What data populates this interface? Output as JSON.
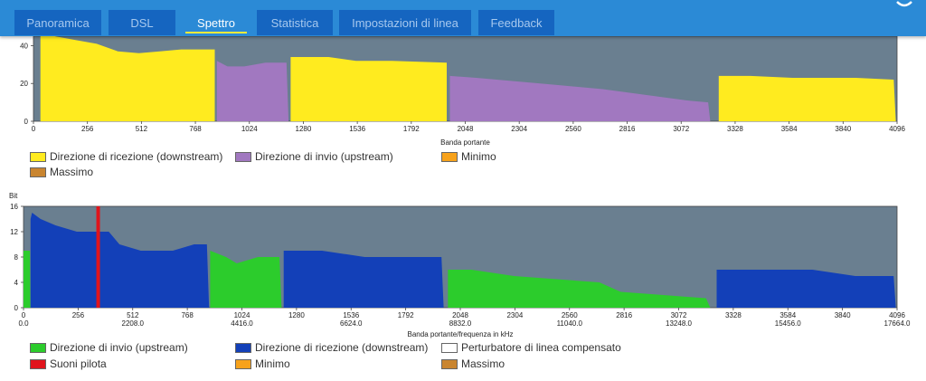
{
  "tabs": [
    {
      "label": "Panoramica",
      "active": false
    },
    {
      "label": "DSL",
      "active": false
    },
    {
      "label": "Spettro",
      "active": true
    },
    {
      "label": "Statistica",
      "active": false
    },
    {
      "label": "Impostazioni di linea",
      "active": false
    },
    {
      "label": "Feedback",
      "active": false
    }
  ],
  "colors": {
    "downstream_yellow": "#ffeb1f",
    "upstream_purple": "#a178c0",
    "upstream_green": "#2ccc2c",
    "downstream_blue": "#1340b8",
    "pilot_red": "#e0141c",
    "minimo": "#f7a21b",
    "massimo": "#c98530",
    "plot_bg": "#6a7f90"
  },
  "chart_data": [
    {
      "type": "area",
      "title": "",
      "xlabel": "Banda portante",
      "ylabel": "",
      "xlim": [
        0,
        4096
      ],
      "ylim": [
        0,
        45
      ],
      "x_ticks": [
        "0",
        "256",
        "512",
        "768",
        "1024",
        "1280",
        "1536",
        "1792",
        "2048",
        "2304",
        "2560",
        "2816",
        "3072",
        "3328",
        "3584",
        "3840",
        "4096"
      ],
      "y_ticks": [
        "0",
        "20",
        "40"
      ],
      "series": [
        {
          "name": "Direzione di ricezione (downstream)",
          "color": "#ffeb1f",
          "points": [
            [
              33,
              45
            ],
            [
              100,
              45
            ],
            [
              200,
              43
            ],
            [
              300,
              41
            ],
            [
              400,
              37
            ],
            [
              500,
              36
            ],
            [
              600,
              37
            ],
            [
              700,
              38
            ],
            [
              860,
              38
            ],
            [
              860,
              0
            ]
          ]
        },
        {
          "name": "Direzione di invio (upstream)",
          "color": "#a178c0",
          "points": [
            [
              870,
              32
            ],
            [
              920,
              29
            ],
            [
              1000,
              29
            ],
            [
              1100,
              31
            ],
            [
              1200,
              31
            ],
            [
              1210,
              0
            ]
          ]
        },
        {
          "name": "Direzione di ricezione (downstream)",
          "color": "#ffeb1f",
          "points": [
            [
              1220,
              34
            ],
            [
              1400,
              34
            ],
            [
              1530,
              32
            ],
            [
              1700,
              32
            ],
            [
              1960,
              31
            ],
            [
              1960,
              0
            ]
          ]
        },
        {
          "name": "Direzione di invio (upstream)",
          "color": "#a178c0",
          "points": [
            [
              1975,
              24
            ],
            [
              2100,
              23
            ],
            [
              2300,
              21
            ],
            [
              2500,
              19
            ],
            [
              2700,
              17
            ],
            [
              2900,
              14
            ],
            [
              3100,
              11
            ],
            [
              3200,
              10
            ],
            [
              3210,
              0
            ]
          ]
        },
        {
          "name": "Direzione di ricezione (downstream)",
          "color": "#ffeb1f",
          "points": [
            [
              3250,
              24
            ],
            [
              3400,
              24
            ],
            [
              3600,
              23
            ],
            [
              3900,
              23
            ],
            [
              4080,
              22
            ],
            [
              4090,
              0
            ]
          ]
        }
      ],
      "legend": [
        "Direzione di ricezione (downstream)",
        "Direzione di invio (upstream)",
        "Minimo",
        "Massimo"
      ]
    },
    {
      "type": "area",
      "title": "",
      "ylabel": "Bit",
      "xlabel": "Banda portante/frequenza in kHz",
      "xlim": [
        0,
        4096
      ],
      "ylim": [
        0,
        16
      ],
      "x_ticks": [
        "0",
        "256",
        "512",
        "768",
        "1024",
        "1280",
        "1536",
        "1792",
        "2048",
        "2304",
        "2560",
        "2816",
        "3072",
        "3328",
        "3584",
        "3840",
        "4096"
      ],
      "x_freq_ticks": [
        "0.0",
        "2208.0",
        "4416.0",
        "6624.0",
        "8832.0",
        "11040.0",
        "13248.0",
        "15456.0",
        "17664.0"
      ],
      "y_ticks": [
        "0",
        "4",
        "8",
        "12",
        "16"
      ],
      "series": [
        {
          "name": "Direzione di invio (upstream)",
          "color": "#2ccc2c",
          "points": [
            [
              0,
              9
            ],
            [
              30,
              9
            ],
            [
              32,
              0
            ]
          ]
        },
        {
          "name": "Direzione di ricezione (downstream)",
          "color": "#1340b8",
          "points": [
            [
              33,
              14
            ],
            [
              40,
              15
            ],
            [
              80,
              14
            ],
            [
              150,
              13
            ],
            [
              250,
              12
            ],
            [
              400,
              12
            ],
            [
              450,
              10
            ],
            [
              550,
              9
            ],
            [
              700,
              9
            ],
            [
              800,
              10
            ],
            [
              860,
              10
            ],
            [
              870,
              0
            ]
          ]
        },
        {
          "name": "Direzione di invio (upstream)",
          "color": "#2ccc2c",
          "points": [
            [
              875,
              9
            ],
            [
              950,
              8
            ],
            [
              1000,
              7
            ],
            [
              1100,
              8
            ],
            [
              1200,
              8
            ],
            [
              1210,
              0
            ]
          ]
        },
        {
          "name": "Direzione di ricezione (downstream)",
          "color": "#1340b8",
          "points": [
            [
              1220,
              9
            ],
            [
              1400,
              9
            ],
            [
              1600,
              8
            ],
            [
              1800,
              8
            ],
            [
              1960,
              8
            ],
            [
              1970,
              0
            ]
          ]
        },
        {
          "name": "Direzione di invio (upstream)",
          "color": "#2ccc2c",
          "points": [
            [
              1990,
              6
            ],
            [
              2100,
              6
            ],
            [
              2300,
              5
            ],
            [
              2500,
              4.5
            ],
            [
              2700,
              4
            ],
            [
              2800,
              2.5
            ],
            [
              3000,
              2
            ],
            [
              3200,
              1.5
            ],
            [
              3220,
              0
            ]
          ]
        },
        {
          "name": "Direzione di ricezione (downstream)",
          "color": "#1340b8",
          "points": [
            [
              3250,
              6
            ],
            [
              3400,
              6
            ],
            [
              3700,
              6
            ],
            [
              3900,
              5
            ],
            [
              4080,
              5
            ],
            [
              4090,
              0
            ]
          ]
        }
      ],
      "pilot_tone_x": 350,
      "legend": [
        "Direzione di invio (upstream)",
        "Direzione di ricezione (downstream)",
        "Perturbatore di linea compensato",
        "Suoni pilota",
        "Minimo",
        "Massimo"
      ]
    }
  ]
}
